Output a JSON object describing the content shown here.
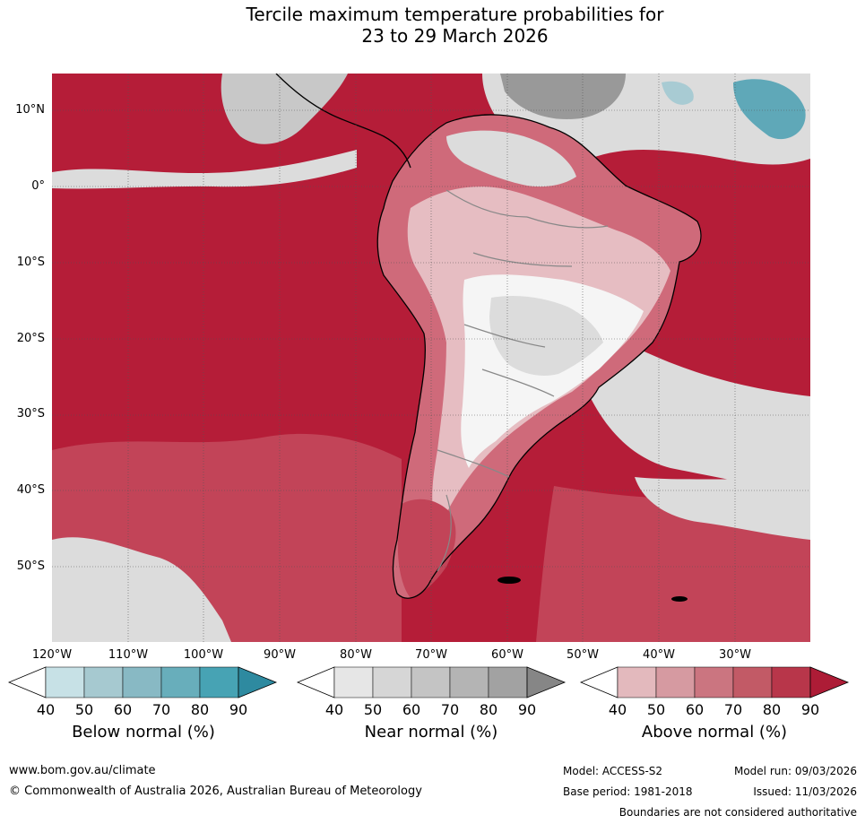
{
  "title": {
    "line1": "Tercile maximum temperature probabilities for",
    "line2": "23 to 29 March 2026"
  },
  "map": {
    "latitude_labels": [
      "10°N",
      "0°",
      "10°S",
      "20°S",
      "30°S",
      "40°S",
      "50°S"
    ],
    "longitude_labels": [
      "120°W",
      "110°W",
      "100°W",
      "90°W",
      "80°W",
      "70°W",
      "60°W",
      "50°W",
      "40°W",
      "30°W"
    ],
    "colors": {
      "ocean_above": "#b51d38",
      "above_80": "#c24458",
      "above_70": "#cf6a7a",
      "above_60": "#da9aa3",
      "above_50": "#e6bdc2",
      "near_40": "#f5f5f5",
      "near_50": "#dcdcdc",
      "near_60": "#c8c8c8",
      "near_90": "#999999",
      "below_50": "#a8cbd3",
      "below_70": "#5fa8b8",
      "coastline": "#000000",
      "border": "#888888",
      "grid": "#555555"
    }
  },
  "legends": [
    {
      "title": "Below normal (%)",
      "ticks": [
        "40",
        "50",
        "60",
        "70",
        "80",
        "90"
      ],
      "colors": [
        "#ffffff",
        "#c7e1e6",
        "#a6c9d0",
        "#88b9c4",
        "#68aebb",
        "#47a3b4",
        "#2e8aa0"
      ]
    },
    {
      "title": "Near normal (%)",
      "ticks": [
        "40",
        "50",
        "60",
        "70",
        "80",
        "90"
      ],
      "colors": [
        "#ffffff",
        "#e6e6e6",
        "#d6d6d6",
        "#c4c4c4",
        "#b4b4b4",
        "#a2a2a2",
        "#868686"
      ]
    },
    {
      "title": "Above normal (%)",
      "ticks": [
        "40",
        "50",
        "60",
        "70",
        "80",
        "90"
      ],
      "colors": [
        "#ffffff",
        "#e3b9bd",
        "#d69aa1",
        "#cb7580",
        "#c25a66",
        "#b8364a",
        "#ad1c36"
      ]
    }
  ],
  "footer": {
    "website": "www.bom.gov.au/climate",
    "copyright": "© Commonwealth of Australia 2026, Australian Bureau of Meteorology",
    "model": "Model: ACCESS-S2",
    "model_run": "Model run: 09/03/2026",
    "base_period": "Base period: 1981-2018",
    "issued": "Issued: 11/03/2026",
    "disclaimer": "Boundaries are not considered authoritative"
  }
}
